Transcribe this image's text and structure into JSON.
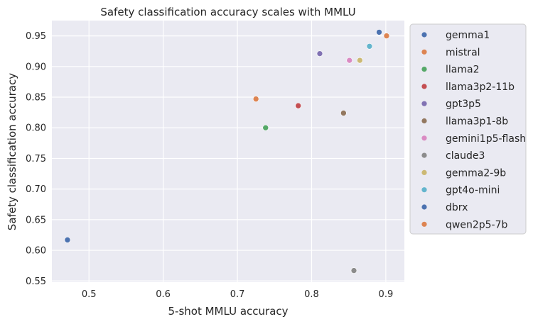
{
  "chart_data": {
    "type": "scatter",
    "title": "Safety classification accuracy scales with MMLU",
    "xlabel": "5-shot MMLU accuracy",
    "ylabel": "Safety classification accuracy",
    "xlim": [
      0.45,
      0.925
    ],
    "ylim": [
      0.548,
      0.975
    ],
    "xticks": [
      0.5,
      0.6,
      0.7,
      0.8,
      0.9
    ],
    "xtick_labels": [
      "0.5",
      "0.6",
      "0.7",
      "0.8",
      "0.9"
    ],
    "yticks": [
      0.55,
      0.6,
      0.65,
      0.7,
      0.75,
      0.8,
      0.85,
      0.9,
      0.95
    ],
    "ytick_labels": [
      "0.55",
      "0.60",
      "0.65",
      "0.70",
      "0.75",
      "0.80",
      "0.85",
      "0.90",
      "0.95"
    ],
    "grid": true,
    "legend_position": "outside-right",
    "series": [
      {
        "name": "gemma1",
        "color": "#4c72b0",
        "x": [
          0.471
        ],
        "y": [
          0.617
        ]
      },
      {
        "name": "mistral",
        "color": "#dd8452",
        "x": [
          0.725
        ],
        "y": [
          0.847
        ]
      },
      {
        "name": "llama2",
        "color": "#55a868",
        "x": [
          0.738
        ],
        "y": [
          0.8
        ]
      },
      {
        "name": "llama3p2-11b",
        "color": "#c44e52",
        "x": [
          0.782
        ],
        "y": [
          0.836
        ]
      },
      {
        "name": "gpt3p5",
        "color": "#8172b3",
        "x": [
          0.811
        ],
        "y": [
          0.921
        ]
      },
      {
        "name": "llama3p1-8b",
        "color": "#937860",
        "x": [
          0.843
        ],
        "y": [
          0.824
        ]
      },
      {
        "name": "gemini1p5-flash",
        "color": "#da8bc3",
        "x": [
          0.851
        ],
        "y": [
          0.91
        ]
      },
      {
        "name": "claude3",
        "color": "#8c8c8c",
        "x": [
          0.857
        ],
        "y": [
          0.567
        ]
      },
      {
        "name": "gemma2-9b",
        "color": "#ccb974",
        "x": [
          0.865
        ],
        "y": [
          0.91
        ]
      },
      {
        "name": "gpt4o-mini",
        "color": "#64b5cd",
        "x": [
          0.878
        ],
        "y": [
          0.933
        ]
      },
      {
        "name": "dbrx",
        "color": "#4c72b0",
        "x": [
          0.891
        ],
        "y": [
          0.956
        ]
      },
      {
        "name": "qwen2p5-7b",
        "color": "#dd8452",
        "x": [
          0.901
        ],
        "y": [
          0.95
        ]
      }
    ]
  }
}
